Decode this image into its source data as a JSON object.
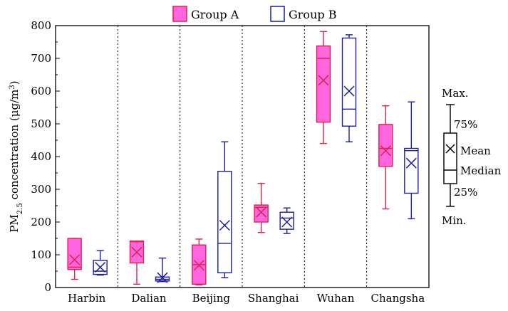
{
  "chart_data": {
    "type": "box",
    "xlabel": "",
    "ylabel_parts": {
      "pm": "PM",
      "sub": "2.5",
      "mid": " concentration (μg/m",
      "sup": "3",
      "end": ")"
    },
    "ylim": [
      0,
      800
    ],
    "yticks": [
      0,
      100,
      200,
      300,
      400,
      500,
      600,
      700,
      800
    ],
    "categories": [
      "Harbin",
      "Dalian",
      "Beijing",
      "Shanghai",
      "Wuhan",
      "Changsha"
    ],
    "legend": [
      "Group A",
      "Group B"
    ],
    "colors": {
      "groupA_stroke": "#e0204a",
      "groupA_fill": "#ff66e0",
      "groupB_stroke": "#1c1ca8",
      "groupB_fill": "#ffffff"
    },
    "series": [
      {
        "name": "Group A",
        "boxes": [
          {
            "min": 25,
            "q1": 55,
            "median": 62,
            "mean": 85,
            "q3": 150,
            "max": 150
          },
          {
            "min": 10,
            "q1": 75,
            "median": 140,
            "mean": 108,
            "q3": 142,
            "max": 142
          },
          {
            "min": 8,
            "q1": 10,
            "median": 70,
            "mean": 68,
            "q3": 130,
            "max": 148
          },
          {
            "min": 168,
            "q1": 200,
            "median": 245,
            "mean": 230,
            "q3": 252,
            "max": 318
          },
          {
            "min": 440,
            "q1": 505,
            "median": 700,
            "mean": 633,
            "q3": 738,
            "max": 782
          },
          {
            "min": 240,
            "q1": 370,
            "median": 425,
            "mean": 418,
            "q3": 498,
            "max": 555
          }
        ]
      },
      {
        "name": "Group B",
        "boxes": [
          {
            "min": 38,
            "q1": 40,
            "median": 50,
            "mean": 62,
            "q3": 83,
            "max": 113
          },
          {
            "min": 18,
            "q1": 20,
            "median": 25,
            "mean": 30,
            "q3": 32,
            "max": 90
          },
          {
            "min": 30,
            "q1": 45,
            "median": 135,
            "mean": 190,
            "q3": 355,
            "max": 445
          },
          {
            "min": 165,
            "q1": 178,
            "median": 212,
            "mean": 200,
            "q3": 230,
            "max": 243
          },
          {
            "min": 445,
            "q1": 493,
            "median": 545,
            "mean": 600,
            "q3": 762,
            "max": 772
          },
          {
            "min": 210,
            "q1": 288,
            "median": 418,
            "mean": 380,
            "q3": 425,
            "max": 567
          }
        ]
      }
    ],
    "key_labels": {
      "max": "Max.",
      "q3": "75%",
      "mean": "Mean",
      "median": "Median",
      "q1": "25%",
      "min": "Min."
    }
  }
}
